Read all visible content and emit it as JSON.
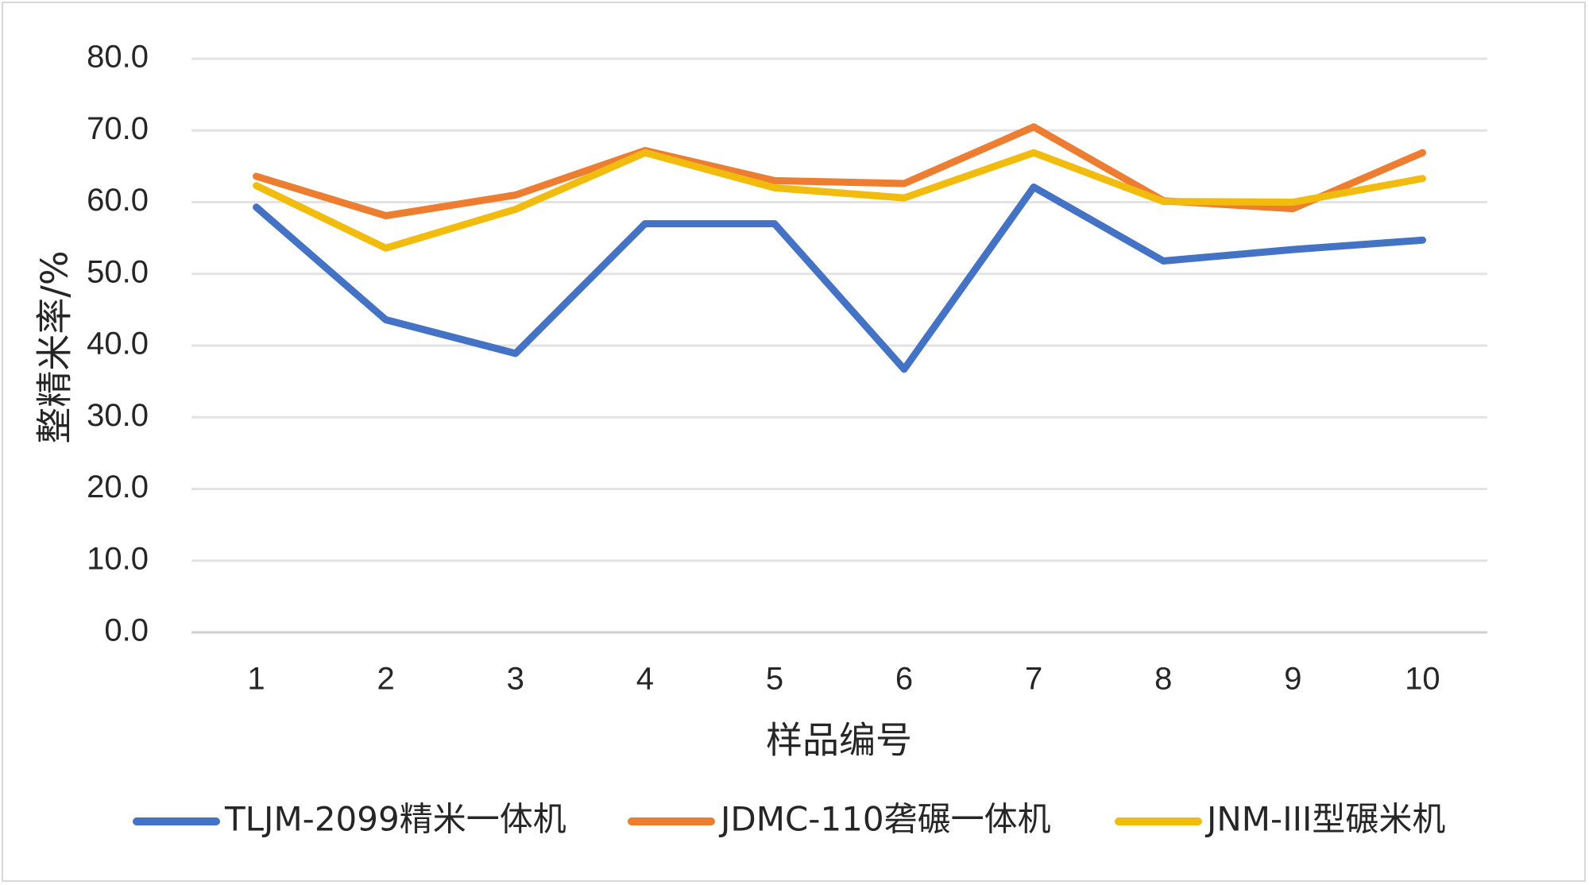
{
  "chart_data": {
    "type": "line",
    "title": "",
    "xlabel": "样品编号",
    "ylabel": "整精米率/%",
    "ylim": [
      0,
      80
    ],
    "yticks": [
      "0.0",
      "10.0",
      "20.0",
      "30.0",
      "40.0",
      "50.0",
      "60.0",
      "70.0",
      "80.0"
    ],
    "categories": [
      "1",
      "2",
      "3",
      "4",
      "5",
      "6",
      "7",
      "8",
      "9",
      "10"
    ],
    "grid": true,
    "legend_position": "bottom",
    "series": [
      {
        "name": "TLJM-2099精米一体机",
        "color": "#4472C4",
        "values": [
          59.3,
          43.6,
          38.9,
          57.0,
          57.0,
          36.7,
          62.1,
          51.8,
          53.4,
          54.7
        ]
      },
      {
        "name": "JDMC-110砻碾一体机",
        "color": "#ED7D31",
        "values": [
          63.6,
          58.1,
          61.0,
          67.2,
          63.0,
          62.6,
          70.5,
          60.2,
          59.1,
          66.9
        ]
      },
      {
        "name": "JNM-III型碾米机",
        "color": "#F2BC0E",
        "values": [
          62.3,
          53.6,
          59.0,
          66.9,
          62.0,
          60.6,
          66.9,
          60.1,
          60.0,
          63.3
        ]
      }
    ]
  }
}
